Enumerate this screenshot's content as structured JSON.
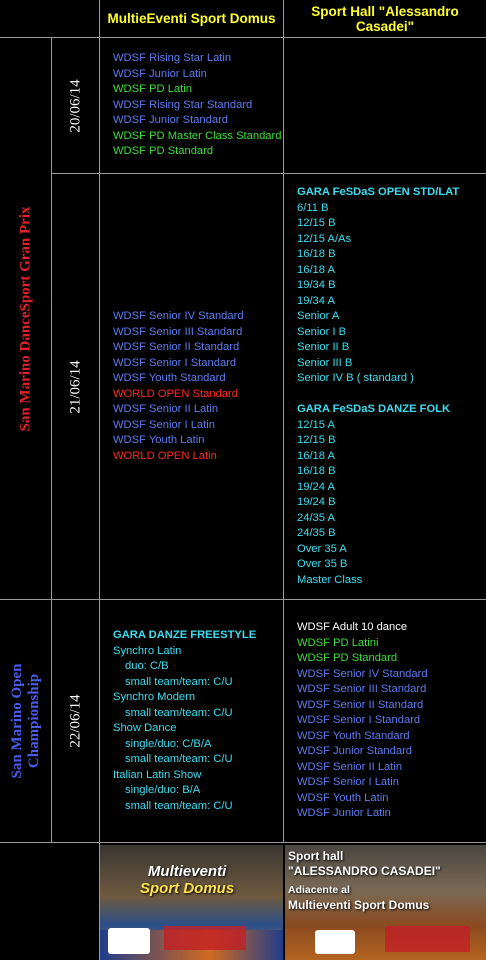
{
  "header": {
    "columns": [
      "MultieEventi Sport Domus",
      "Sport Hall \"Alessandro Casadei\""
    ]
  },
  "events": [
    {
      "name": "San Marino DanceSport Gran Prix",
      "color": "#e3222c",
      "days": [
        {
          "date": "20/06/14",
          "left": [
            [
              {
                "text": "WDSF Rising Star Latin",
                "color": "#5c7cf0"
              },
              {
                "text": "WDSF Junior Latin",
                "color": "#5c7cf0"
              },
              {
                "text": "WDSF PD Latin",
                "color": "#3fdc3a"
              },
              {
                "text": "WDSF Rising Star Standard",
                "color": "#5c7cf0"
              },
              {
                "text": "WDSF Junior Standard",
                "color": "#5c7cf0"
              },
              {
                "text": "WDSF PD Master Class Standard",
                "color": "#3fdc3a"
              },
              {
                "text": "WDSF PD Standard",
                "color": "#3fdc3a"
              }
            ]
          ],
          "right": []
        },
        {
          "date": "21/06/14",
          "left": [
            [
              {
                "text": "WDSF Senior IV Standard",
                "color": "#5c7cf0"
              },
              {
                "text": "WDSF Senior III Standard",
                "color": "#5c7cf0"
              },
              {
                "text": "WDSF Senior II Standard",
                "color": "#5c7cf0"
              },
              {
                "text": "WDSF Senior I Standard",
                "color": "#5c7cf0"
              },
              {
                "text": "WDSF Youth Standard",
                "color": "#5c7cf0"
              },
              {
                "text": "WORLD OPEN Standard",
                "color": "#ff2a1e"
              },
              {
                "text": "WDSF Senior II Latin",
                "color": "#5c7cf0"
              },
              {
                "text": "WDSF Senior I Latin",
                "color": "#5c7cf0"
              },
              {
                "text": "WDSF Youth Latin",
                "color": "#5c7cf0"
              },
              {
                "text": "WORLD OPEN Latin",
                "color": "#ff2a1e"
              }
            ]
          ],
          "right": [
            [
              {
                "text": "GARA  FeSDaS OPEN STD/LAT",
                "color": "#3edcef",
                "bold": true
              },
              {
                "text": "6/11 B",
                "color": "#3edcef"
              },
              {
                "text": "12/15 B",
                "color": "#3edcef"
              },
              {
                "text": "12/15 A/As",
                "color": "#3edcef"
              },
              {
                "text": "16/18 B",
                "color": "#3edcef"
              },
              {
                "text": "16/18 A",
                "color": "#3edcef"
              },
              {
                "text": "19/34 B",
                "color": "#3edcef"
              },
              {
                "text": "19/34 A",
                "color": "#3edcef"
              },
              {
                "text": "Senior A",
                "color": "#3edcef"
              },
              {
                "text": "Senior I B",
                "color": "#3edcef"
              },
              {
                "text": "Senior II B",
                "color": "#3edcef"
              },
              {
                "text": "Senior III B",
                "color": "#3edcef"
              },
              {
                "text": "Senior IV B ( standard )",
                "color": "#3edcef"
              }
            ],
            [
              {
                "text": "GARA  FeSDaS DANZE FOLK",
                "color": "#3edcef",
                "bold": true
              },
              {
                "text": "12/15 A",
                "color": "#3edcef"
              },
              {
                "text": "12/15 B",
                "color": "#3edcef"
              },
              {
                "text": "16/18 A",
                "color": "#3edcef"
              },
              {
                "text": "16/18 B",
                "color": "#3edcef"
              },
              {
                "text": "19/24 A",
                "color": "#3edcef"
              },
              {
                "text": "19/24 B",
                "color": "#3edcef"
              },
              {
                "text": "24/35 A",
                "color": "#3edcef"
              },
              {
                "text": "24/35 B",
                "color": "#3edcef"
              },
              {
                "text": "Over 35 A",
                "color": "#3edcef"
              },
              {
                "text": "Over 35 B",
                "color": "#3edcef"
              },
              {
                "text": "Master Class",
                "color": "#3edcef"
              }
            ]
          ]
        }
      ]
    },
    {
      "name": "San Marino Open Championship",
      "color": "#4a5cf0",
      "days": [
        {
          "date": "22/06/14",
          "left": [
            [
              {
                "text": "GARA  DANZE FREESTYLE",
                "color": "#3edcef",
                "bold": true
              },
              {
                "text": "Synchro Latin",
                "color": "#3edcef",
                "sub": [
                  "duo: C/B",
                  "small team/team: C/U"
                ]
              },
              {
                "text": "Synchro Modern",
                "color": "#3edcef",
                "sub": [
                  "small team/team: C/U"
                ]
              },
              {
                "text": "Show Dance",
                "color": "#3edcef",
                "sub": [
                  "single/duo: C/B/A",
                  "small team/team: C/U"
                ]
              },
              {
                "text": "Italian Latin Show",
                "color": "#3edcef",
                "sub": [
                  "single/duo: B/A",
                  "small team/team: C/U"
                ]
              }
            ]
          ],
          "right": [
            [
              {
                "text": "WDSF Adult 10 dance",
                "color": "#ffffff"
              },
              {
                "text": "WDSF PD Latini",
                "color": "#3fdc3a"
              },
              {
                "text": "WDSF PD Standard",
                "color": "#3fdc3a"
              },
              {
                "text": "WDSF Senior IV Standard",
                "color": "#5c7cf0"
              },
              {
                "text": "WDSF Senior III Standard",
                "color": "#5c7cf0"
              },
              {
                "text": "WDSF Senior II Standard",
                "color": "#5c7cf0"
              },
              {
                "text": "WDSF Senior I Standard",
                "color": "#5c7cf0"
              },
              {
                "text": "WDSF Youth Standard",
                "color": "#5c7cf0"
              },
              {
                "text": "WDSF Junior Standard",
                "color": "#5c7cf0"
              },
              {
                "text": "WDSF Senior II Latin",
                "color": "#5c7cf0"
              },
              {
                "text": "WDSF Senior I Latin",
                "color": "#5c7cf0"
              },
              {
                "text": "WDSF Youth Latin",
                "color": "#5c7cf0"
              },
              {
                "text": "WDSF Junior Latin",
                "color": "#5c7cf0"
              }
            ]
          ]
        }
      ]
    }
  ],
  "images": {
    "left": {
      "lines": [
        "Multieventi",
        "Sport Domus"
      ]
    },
    "right": {
      "lines": [
        "Sport hall",
        "\"ALESSANDRO CASADEI\"",
        "Adiacente al",
        "Multieventi  Sport Domus"
      ]
    }
  }
}
